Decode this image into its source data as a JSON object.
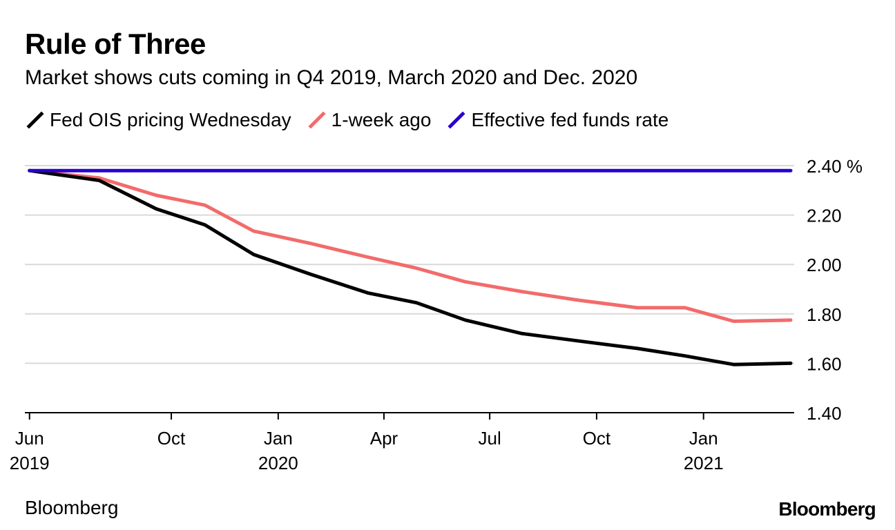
{
  "title": "Rule of Three",
  "subtitle": "Market shows cuts coming in Q4 2019, March 2020 and Dec. 2020",
  "source": "Bloomberg",
  "logo": "Bloomberg",
  "colors": {
    "ois": "#000000",
    "week_ago": "#f26b6b",
    "effr": "#2a00cc",
    "grid": "#d9d9d9",
    "axis": "#000000"
  },
  "chart_data": {
    "type": "line",
    "title": "Rule of Three",
    "subtitle": "Market shows cuts coming in Q4 2019, March 2020 and Dec. 2020",
    "xlabel": "",
    "ylabel": "%",
    "ylim": [
      1.4,
      2.4
    ],
    "yticks": [
      {
        "value": 2.4,
        "label": "2.40 %"
      },
      {
        "value": 2.2,
        "label": "2.20"
      },
      {
        "value": 2.0,
        "label": "2.00"
      },
      {
        "value": 1.8,
        "label": "1.80"
      },
      {
        "value": 1.6,
        "label": "1.60"
      },
      {
        "value": 1.4,
        "label": "1.40"
      }
    ],
    "xlim": [
      "2019-05-28",
      "2021-03-20"
    ],
    "xticks": [
      {
        "date": "2019-06-01",
        "label": "Jun",
        "year": "2019"
      },
      {
        "date": "2019-10-01",
        "label": "Oct",
        "year": ""
      },
      {
        "date": "2020-01-01",
        "label": "Jan",
        "year": "2020"
      },
      {
        "date": "2020-04-01",
        "label": "Apr",
        "year": ""
      },
      {
        "date": "2020-07-01",
        "label": "Jul",
        "year": ""
      },
      {
        "date": "2020-10-01",
        "label": "Oct",
        "year": ""
      },
      {
        "date": "2021-01-01",
        "label": "Jan",
        "year": "2021"
      }
    ],
    "legend_position": "top-left",
    "grid": true,
    "series": [
      {
        "name": "Fed OIS pricing Wednesday",
        "color": "#000000",
        "points": [
          [
            "2019-06-01",
            2.38
          ],
          [
            "2019-07-31",
            2.34
          ],
          [
            "2019-09-18",
            2.225
          ],
          [
            "2019-10-30",
            2.16
          ],
          [
            "2019-12-11",
            2.04
          ],
          [
            "2020-01-29",
            1.96
          ],
          [
            "2020-03-18",
            1.885
          ],
          [
            "2020-04-29",
            1.845
          ],
          [
            "2020-06-10",
            1.775
          ],
          [
            "2020-07-29",
            1.72
          ],
          [
            "2020-09-16",
            1.69
          ],
          [
            "2020-11-05",
            1.66
          ],
          [
            "2020-12-16",
            1.63
          ],
          [
            "2021-01-27",
            1.595
          ],
          [
            "2021-03-17",
            1.6
          ]
        ]
      },
      {
        "name": "1-week ago",
        "color": "#f26b6b",
        "points": [
          [
            "2019-06-01",
            2.38
          ],
          [
            "2019-07-31",
            2.35
          ],
          [
            "2019-09-18",
            2.28
          ],
          [
            "2019-10-30",
            2.24
          ],
          [
            "2019-12-11",
            2.135
          ],
          [
            "2020-01-29",
            2.085
          ],
          [
            "2020-03-18",
            2.03
          ],
          [
            "2020-04-29",
            1.985
          ],
          [
            "2020-06-10",
            1.93
          ],
          [
            "2020-07-29",
            1.89
          ],
          [
            "2020-09-16",
            1.855
          ],
          [
            "2020-11-05",
            1.825
          ],
          [
            "2020-12-16",
            1.825
          ],
          [
            "2021-01-27",
            1.77
          ],
          [
            "2021-03-17",
            1.775
          ]
        ]
      },
      {
        "name": "Effective fed funds rate",
        "color": "#2a00cc",
        "points": [
          [
            "2019-06-01",
            2.38
          ],
          [
            "2021-03-17",
            2.38
          ]
        ]
      }
    ]
  }
}
